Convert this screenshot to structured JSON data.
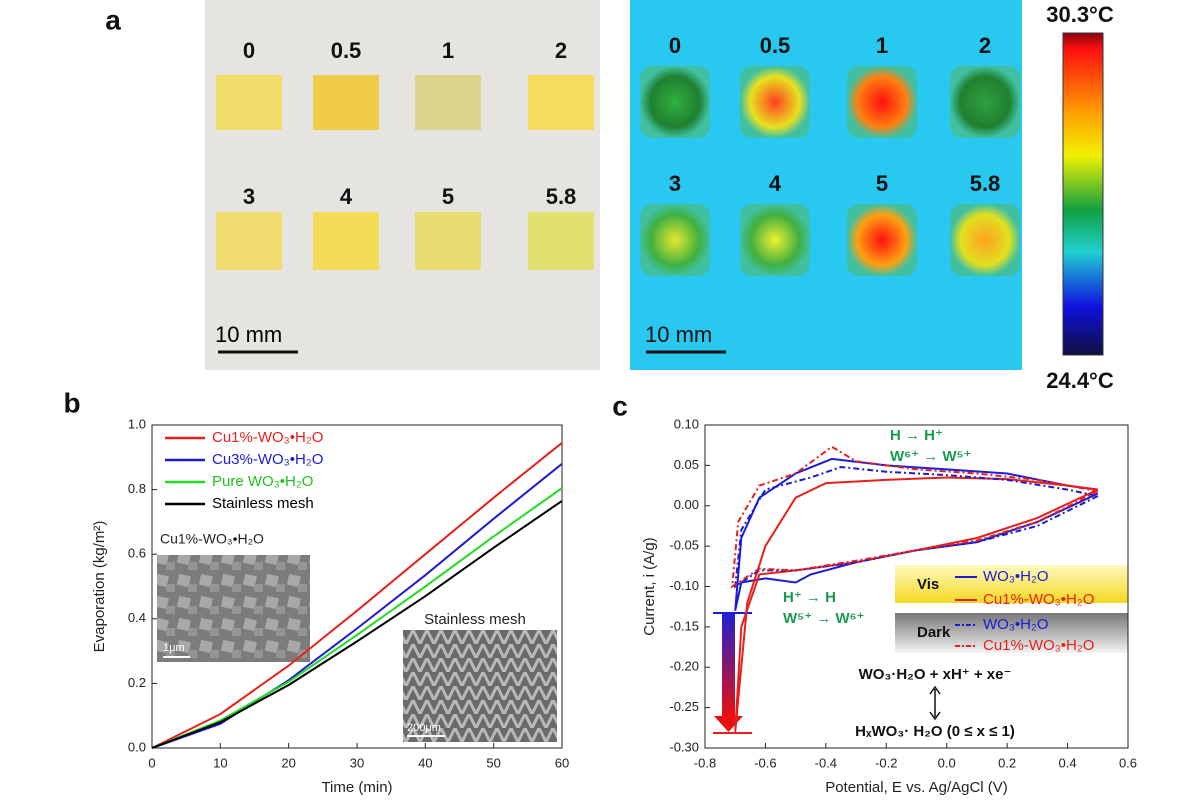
{
  "panel_labels": [
    "a",
    "b",
    "c"
  ],
  "photo": {
    "sample_labels": [
      "0",
      "0.5",
      "1",
      "2",
      "3",
      "4",
      "5",
      "5.8"
    ],
    "scale_bar": "10 mm",
    "colorbar_max": "30.3°C",
    "colorbar_min": "24.4°C"
  },
  "chart_data": [
    {
      "type": "line",
      "x_label": "Time (min)",
      "y_label": "Evaporation (kg/m²)",
      "x": [
        0,
        10,
        20,
        30,
        40,
        50,
        60
      ],
      "xlim": [
        0,
        60
      ],
      "xticks": [
        0,
        10,
        20,
        30,
        40,
        50,
        60
      ],
      "ylim": [
        0,
        1
      ],
      "yticks": [
        {
          "value": 0,
          "label": "0.0"
        },
        0.2,
        0.4,
        0.6,
        0.8,
        {
          "value": 1,
          "label": "1.0"
        }
      ],
      "legend": "upper left",
      "series": [
        {
          "name": "Cu1%-WO₃•H₂O",
          "color": "#e8201c",
          "values": [
            0,
            0.105,
            0.255,
            0.425,
            0.6,
            0.775,
            0.945
          ]
        },
        {
          "name": "Cu3%-WO₃•H₂O",
          "color": "#1c1cd6",
          "values": [
            0,
            0.075,
            0.21,
            0.37,
            0.535,
            0.71,
            0.88
          ]
        },
        {
          "name": "Pure WO₃•H₂O",
          "color": "#22dd22",
          "values": [
            0,
            0.085,
            0.205,
            0.35,
            0.5,
            0.655,
            0.805
          ]
        },
        {
          "name": "Stainless mesh",
          "color": "#000000",
          "values": [
            0,
            0.08,
            0.195,
            0.33,
            0.47,
            0.62,
            0.765
          ]
        }
      ],
      "annotations": [
        "Cu1%-WO₃•H₂O",
        "1μm",
        "Stainless mesh",
        "200μm"
      ]
    },
    {
      "type": "line",
      "x_label": "Potential, E vs. Ag/AgCl (V)",
      "y_label": "Current, i (A/g)",
      "xlim": [
        -0.8,
        0.6
      ],
      "xticks": [
        -0.8,
        -0.6,
        -0.4,
        -0.2,
        {
          "value": 0,
          "label": "0.0"
        },
        0.2,
        0.4,
        0.6
      ],
      "ylim": [
        -0.3,
        0.1
      ],
      "yticks": [
        {
          "value": -0.3,
          "label": "-0.30"
        },
        {
          "value": -0.25,
          "label": "-0.25"
        },
        {
          "value": -0.2,
          "label": "-0.20"
        },
        {
          "value": -0.15,
          "label": "-0.15"
        },
        {
          "value": -0.1,
          "label": "-0.10"
        },
        {
          "value": -0.05,
          "label": "-0.05"
        },
        {
          "value": 0,
          "label": "0.00"
        },
        {
          "value": 0.05,
          "label": "0.05"
        },
        {
          "value": 0.1,
          "label": "0.10"
        }
      ],
      "legend_groups": [
        "Vis",
        "Dark"
      ],
      "series": [
        {
          "name": "WO₃•H₂O",
          "color": "#1c1cd6",
          "linestyle": "solid",
          "x": [
            0.5,
            0.3,
            0.1,
            -0.1,
            -0.3,
            -0.45,
            -0.5,
            -0.6,
            -0.68,
            -0.7,
            -0.68,
            -0.62,
            -0.5,
            -0.38,
            -0.2,
            0.0,
            0.2,
            0.4,
            0.5
          ],
          "values": [
            0.015,
            -0.02,
            -0.045,
            -0.055,
            -0.07,
            -0.085,
            -0.095,
            -0.09,
            -0.095,
            -0.13,
            -0.04,
            0.01,
            0.04,
            0.058,
            0.05,
            0.045,
            0.04,
            0.025,
            0.02
          ]
        },
        {
          "name": "Cu1%-WO₃•H₂O",
          "color": "#e8201c",
          "linestyle": "solid",
          "x": [
            0.5,
            0.3,
            0.1,
            -0.1,
            -0.3,
            -0.5,
            -0.62,
            -0.68,
            -0.7,
            -0.66,
            -0.6,
            -0.5,
            -0.4,
            -0.2,
            0.0,
            0.2,
            0.4,
            0.5
          ],
          "values": [
            0.02,
            -0.015,
            -0.04,
            -0.055,
            -0.07,
            -0.08,
            -0.085,
            -0.15,
            -0.28,
            -0.12,
            -0.05,
            0.01,
            0.028,
            0.032,
            0.035,
            0.033,
            0.025,
            0.02
          ]
        },
        {
          "name": "WO₃•H₂O",
          "color": "#1c1cd6",
          "linestyle": "dashed",
          "x": [
            0.5,
            0.3,
            0.1,
            -0.1,
            -0.3,
            -0.5,
            -0.62,
            -0.7,
            -0.68,
            -0.6,
            -0.45,
            -0.35,
            -0.2,
            0.0,
            0.2,
            0.4,
            0.5
          ],
          "values": [
            0.012,
            -0.025,
            -0.045,
            -0.055,
            -0.07,
            -0.08,
            -0.08,
            -0.1,
            -0.03,
            0.02,
            0.035,
            0.048,
            0.042,
            0.038,
            0.032,
            0.02,
            0.012
          ]
        },
        {
          "name": "Cu1%-WO₃•H₂O",
          "color": "#e8201c",
          "linestyle": "dashed",
          "x": [
            0.5,
            0.3,
            0.1,
            -0.1,
            -0.3,
            -0.5,
            -0.62,
            -0.71,
            -0.69,
            -0.62,
            -0.5,
            -0.38,
            -0.3,
            -0.1,
            0.1,
            0.3,
            0.5
          ],
          "values": [
            0.018,
            -0.02,
            -0.043,
            -0.055,
            -0.068,
            -0.08,
            -0.078,
            -0.1,
            -0.02,
            0.025,
            0.04,
            0.073,
            0.055,
            0.045,
            0.04,
            0.032,
            0.018
          ]
        }
      ],
      "annotations": [
        "H → H⁺",
        "W⁶⁺ → W⁵⁺",
        "H⁺ → H",
        "W⁵⁺ → W⁶⁺",
        "WO₃·H₂O + xH⁺ + xe⁻",
        "HₓWO₃· H₂O (0 ≤ x ≤ 1)"
      ]
    }
  ]
}
